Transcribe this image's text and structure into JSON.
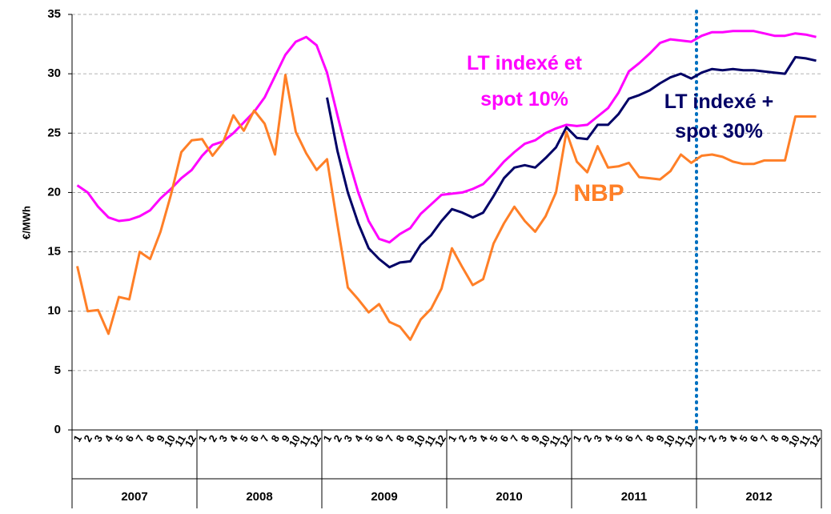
{
  "chart_data": {
    "type": "line",
    "y_label": "€/MWh",
    "categories": [
      "1",
      "2",
      "3",
      "4",
      "5",
      "6",
      "7",
      "8",
      "9",
      "10",
      "11",
      "12",
      "1",
      "2",
      "3",
      "4",
      "5",
      "6",
      "7",
      "8",
      "9",
      "10",
      "11",
      "12",
      "1",
      "2",
      "3",
      "4",
      "5",
      "6",
      "7",
      "8",
      "9",
      "10",
      "11",
      "12",
      "1",
      "2",
      "3",
      "4",
      "5",
      "6",
      "7",
      "8",
      "9",
      "10",
      "11",
      "12",
      "1",
      "2",
      "3",
      "4",
      "5",
      "6",
      "7",
      "8",
      "9",
      "10",
      "11",
      "12",
      "1",
      "2",
      "3",
      "4",
      "5",
      "6",
      "7",
      "8",
      "9",
      "10",
      "11",
      "12"
    ],
    "groups": [
      "2007",
      "2008",
      "2009",
      "2010",
      "2011",
      "2012"
    ],
    "series": [
      {
        "name": "LT indexé et spot 10%",
        "color": "#ff00ff",
        "values": [
          20.6,
          20.0,
          18.8,
          17.9,
          17.6,
          17.7,
          18.0,
          18.5,
          19.5,
          20.3,
          21.2,
          21.9,
          23.1,
          24.0,
          24.3,
          25.0,
          25.9,
          26.8,
          28.0,
          29.8,
          31.6,
          32.7,
          33.1,
          32.4,
          30.1,
          26.5,
          23.0,
          20.0,
          17.6,
          16.1,
          15.8,
          16.5,
          17.0,
          18.2,
          19.0,
          19.8,
          19.9,
          20.0,
          20.3,
          20.7,
          21.6,
          22.6,
          23.4,
          24.1,
          24.4,
          25.0,
          25.4,
          25.7,
          25.6,
          25.7,
          26.4,
          27.1,
          28.4,
          30.2,
          30.9,
          31.7,
          32.6,
          32.9,
          32.8,
          32.7,
          33.2,
          33.5,
          33.5,
          33.6,
          33.6,
          33.6,
          33.4,
          33.2,
          33.2,
          33.4,
          33.3,
          33.1
        ]
      },
      {
        "name": "LT indexé + spot 30%",
        "color": "#000066",
        "values": [
          null,
          null,
          null,
          null,
          null,
          null,
          null,
          null,
          null,
          null,
          null,
          null,
          null,
          null,
          null,
          null,
          null,
          null,
          null,
          null,
          null,
          null,
          null,
          null,
          28.0,
          23.5,
          20.0,
          17.4,
          15.3,
          14.4,
          13.7,
          14.1,
          14.2,
          15.6,
          16.4,
          17.6,
          18.6,
          18.3,
          17.9,
          18.3,
          19.7,
          21.2,
          22.1,
          22.3,
          22.1,
          22.9,
          23.8,
          25.5,
          24.6,
          24.5,
          25.7,
          25.7,
          26.6,
          27.9,
          28.2,
          28.6,
          29.2,
          29.7,
          30.0,
          29.6,
          30.1,
          30.4,
          30.3,
          30.4,
          30.3,
          30.3,
          30.2,
          30.1,
          30.0,
          31.4,
          31.3,
          31.1
        ]
      },
      {
        "name": "NBP",
        "color": "#ff7f27",
        "values": [
          13.8,
          10.0,
          10.1,
          8.1,
          11.2,
          11.0,
          15.0,
          14.4,
          16.7,
          19.8,
          23.4,
          24.4,
          24.5,
          23.1,
          24.2,
          26.5,
          25.2,
          26.9,
          25.8,
          23.2,
          29.9,
          25.1,
          23.3,
          21.9,
          22.8,
          17.3,
          12.0,
          11.0,
          9.9,
          10.6,
          9.1,
          8.7,
          7.6,
          9.3,
          10.2,
          11.9,
          15.3,
          13.7,
          12.2,
          12.7,
          15.7,
          17.4,
          18.8,
          17.6,
          16.7,
          18.0,
          20.0,
          25.1,
          22.6,
          21.7,
          23.9,
          22.1,
          22.2,
          22.5,
          21.3,
          21.2,
          21.1,
          21.8,
          23.2,
          22.5,
          23.1,
          23.2,
          23.0,
          22.6,
          22.4,
          22.4,
          22.7,
          22.7,
          22.7,
          26.4,
          26.4,
          26.4
        ]
      }
    ],
    "ylim": [
      0,
      35
    ],
    "yticks": [
      0,
      5,
      10,
      15,
      20,
      25,
      30,
      35
    ],
    "grid": true
  }
}
